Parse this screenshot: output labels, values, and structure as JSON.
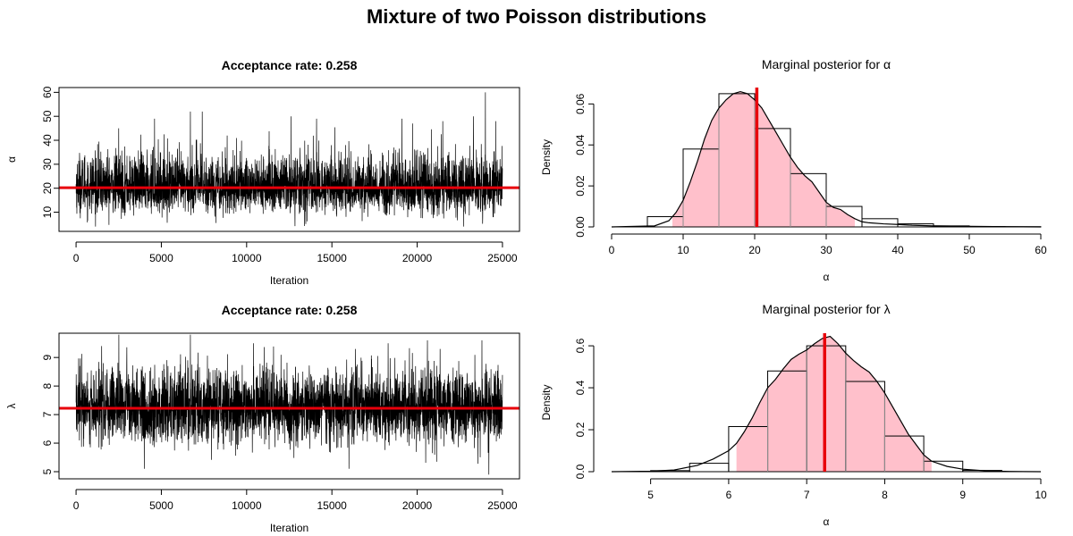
{
  "figure": {
    "title": "Mixture of two Poisson distributions"
  },
  "chart_data": [
    {
      "id": "trace-alpha",
      "type": "line",
      "title": "Acceptance rate: 0.258",
      "xlabel": "Iteration",
      "ylabel": "α",
      "xlim": [
        -1000,
        26000
      ],
      "ylim": [
        2,
        62
      ],
      "xticks": [
        0,
        5000,
        10000,
        15000,
        20000,
        25000
      ],
      "yticks": [
        10,
        20,
        30,
        40,
        50,
        60
      ],
      "n_iterations": 25000,
      "reference_line": {
        "value": 20.2,
        "color": "#e8000b"
      },
      "trace_summary": {
        "center": 20,
        "typical_low": 10,
        "typical_high": 35,
        "min": 4,
        "max": 60,
        "spikes": [
          [
            2500,
            45
          ],
          [
            4600,
            49
          ],
          [
            6700,
            52
          ],
          [
            7400,
            52
          ],
          [
            12600,
            50
          ],
          [
            14100,
            49
          ],
          [
            19100,
            49
          ],
          [
            21500,
            48
          ],
          [
            23300,
            50
          ],
          [
            24000,
            60
          ],
          [
            24600,
            48
          ]
        ]
      },
      "grid": false
    },
    {
      "id": "posterior-alpha",
      "type": "histogram",
      "title": "Marginal posterior for α",
      "xlabel": "α",
      "ylabel": "Density",
      "xlim": [
        0,
        60
      ],
      "ylim": [
        0,
        0.068
      ],
      "xticks": [
        0,
        10,
        20,
        30,
        40,
        50,
        60
      ],
      "yticks": [
        0.0,
        0.02,
        0.04,
        0.06
      ],
      "ytick_labels": [
        "0.00",
        "0.02",
        "0.04",
        "0.06"
      ],
      "bins": [
        {
          "x0": 5,
          "x1": 10,
          "density": 0.005
        },
        {
          "x0": 10,
          "x1": 15,
          "density": 0.038
        },
        {
          "x0": 15,
          "x1": 20,
          "density": 0.065
        },
        {
          "x0": 20,
          "x1": 25,
          "density": 0.048
        },
        {
          "x0": 25,
          "x1": 30,
          "density": 0.026
        },
        {
          "x0": 30,
          "x1": 35,
          "density": 0.01
        },
        {
          "x0": 35,
          "x1": 40,
          "density": 0.004
        },
        {
          "x0": 40,
          "x1": 45,
          "density": 0.0015
        },
        {
          "x0": 45,
          "x1": 50,
          "density": 0.0005
        },
        {
          "x0": 50,
          "x1": 55,
          "density": 0.0002
        },
        {
          "x0": 55,
          "x1": 60,
          "density": 0.0001
        }
      ],
      "density_curve": {
        "x": [
          0,
          6,
          8,
          9,
          10,
          11,
          12,
          13,
          14,
          15,
          16,
          17,
          18,
          19,
          20,
          21,
          22,
          23,
          24,
          25,
          26,
          27,
          28,
          29,
          30,
          31,
          32,
          33,
          34,
          35,
          36,
          38,
          40,
          42,
          45,
          50,
          55,
          60
        ],
        "y": [
          0,
          0.0005,
          0.003,
          0.007,
          0.013,
          0.022,
          0.032,
          0.043,
          0.052,
          0.058,
          0.062,
          0.065,
          0.066,
          0.065,
          0.062,
          0.058,
          0.052,
          0.046,
          0.04,
          0.034,
          0.029,
          0.025,
          0.022,
          0.017,
          0.012,
          0.0095,
          0.0085,
          0.006,
          0.004,
          0.0025,
          0.002,
          0.0015,
          0.0012,
          0.0008,
          0.0005,
          0.0003,
          0.0001,
          0
        ],
        "fill_from": 8.5,
        "fill_to": 34,
        "fill_color": "#ffc0cb"
      },
      "reference_line": {
        "value": 20.3,
        "color": "#e8000b"
      },
      "grid": false
    },
    {
      "id": "trace-lambda",
      "type": "line",
      "title": "Acceptance rate: 0.258",
      "xlabel": "Iteration",
      "ylabel": "λ",
      "xlim": [
        -1000,
        26000
      ],
      "ylim": [
        4.75,
        9.85
      ],
      "xticks": [
        0,
        5000,
        10000,
        15000,
        20000,
        25000
      ],
      "yticks": [
        5,
        6,
        7,
        8,
        9
      ],
      "n_iterations": 25000,
      "reference_line": {
        "value": 7.22,
        "color": "#e8000b"
      },
      "trace_summary": {
        "center": 7.2,
        "typical_low": 6.0,
        "typical_high": 8.6,
        "min": 4.9,
        "max": 9.8,
        "spikes": [
          [
            1500,
            9.4
          ],
          [
            4000,
            5.1
          ],
          [
            6700,
            9.8
          ],
          [
            10400,
            9.5
          ],
          [
            16000,
            5.1
          ],
          [
            18300,
            9.5
          ],
          [
            20600,
            9.6
          ],
          [
            23800,
            9.6
          ],
          [
            24200,
            4.9
          ]
        ]
      },
      "grid": false
    },
    {
      "id": "posterior-lambda",
      "type": "histogram",
      "title": "Marginal posterior for λ",
      "xlabel": "α",
      "ylabel": "Density",
      "xlim": [
        4.5,
        10
      ],
      "ylim": [
        0,
        0.66
      ],
      "xticks": [
        5,
        6,
        7,
        8,
        9,
        10
      ],
      "yticks": [
        0.0,
        0.2,
        0.4,
        0.6
      ],
      "ytick_labels": [
        "0.0",
        "0.2",
        "0.4",
        "0.6"
      ],
      "bins": [
        {
          "x0": 5.0,
          "x1": 5.5,
          "density": 0.005
        },
        {
          "x0": 5.5,
          "x1": 6.0,
          "density": 0.04
        },
        {
          "x0": 6.0,
          "x1": 6.5,
          "density": 0.215
        },
        {
          "x0": 6.5,
          "x1": 7.0,
          "density": 0.48
        },
        {
          "x0": 7.0,
          "x1": 7.5,
          "density": 0.6
        },
        {
          "x0": 7.5,
          "x1": 8.0,
          "density": 0.43
        },
        {
          "x0": 8.0,
          "x1": 8.5,
          "density": 0.17
        },
        {
          "x0": 8.5,
          "x1": 9.0,
          "density": 0.05
        },
        {
          "x0": 9.0,
          "x1": 9.5,
          "density": 0.006
        }
      ],
      "density_curve": {
        "x": [
          4.5,
          5.0,
          5.3,
          5.6,
          5.8,
          6.0,
          6.1,
          6.2,
          6.3,
          6.4,
          6.5,
          6.6,
          6.7,
          6.8,
          6.9,
          7.0,
          7.1,
          7.2,
          7.3,
          7.4,
          7.5,
          7.6,
          7.7,
          7.8,
          7.9,
          8.0,
          8.1,
          8.2,
          8.3,
          8.4,
          8.5,
          8.6,
          8.8,
          9.0,
          9.3,
          9.6,
          10.0
        ],
        "y": [
          0,
          0.002,
          0.008,
          0.03,
          0.06,
          0.1,
          0.135,
          0.19,
          0.255,
          0.33,
          0.4,
          0.44,
          0.49,
          0.535,
          0.56,
          0.58,
          0.61,
          0.635,
          0.645,
          0.61,
          0.565,
          0.53,
          0.5,
          0.475,
          0.43,
          0.375,
          0.31,
          0.245,
          0.18,
          0.13,
          0.08,
          0.05,
          0.025,
          0.012,
          0.004,
          0.001,
          0
        ],
        "fill_from": 6.1,
        "fill_to": 8.6,
        "fill_color": "#ffc0cb"
      },
      "reference_line": {
        "value": 7.23,
        "color": "#e8000b"
      },
      "grid": false
    }
  ]
}
